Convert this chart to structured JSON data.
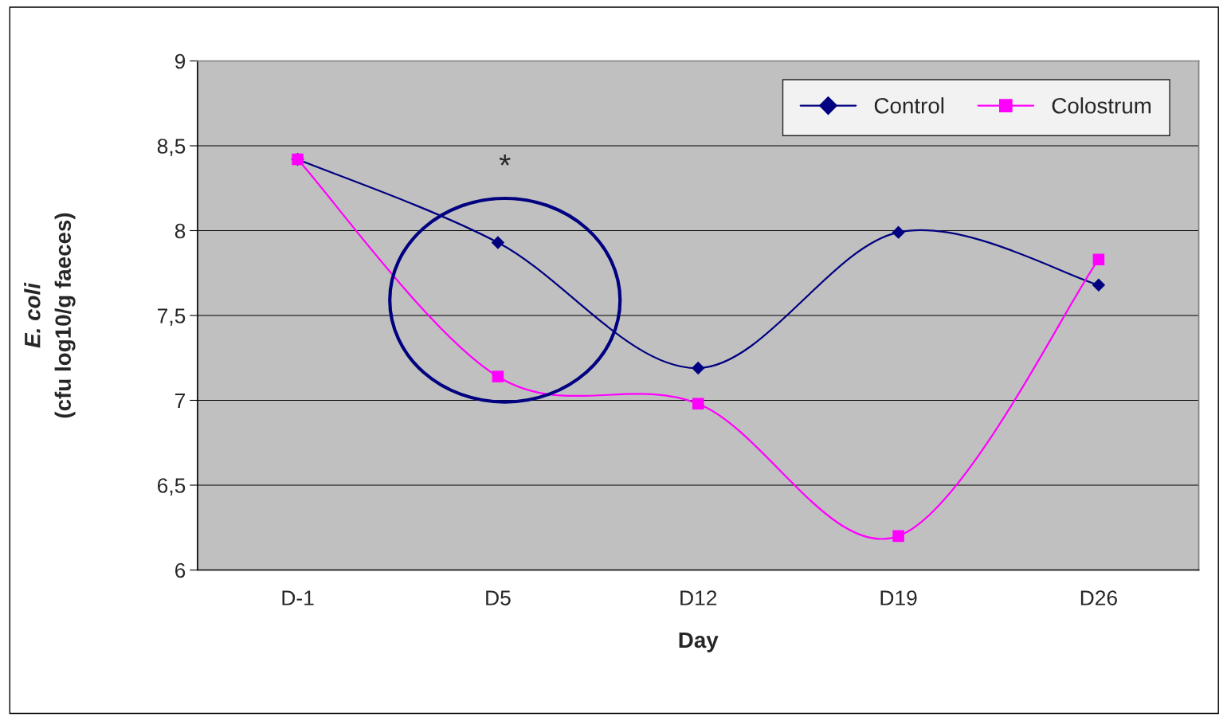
{
  "chart_data": {
    "type": "line",
    "xlabel": "Day",
    "ylabel": "E. coli\n(cfu log10/g faeces)",
    "categories": [
      "D-1",
      "D5",
      "D12",
      "D19",
      "D26"
    ],
    "series": [
      {
        "name": "Control",
        "color": "#000080",
        "marker": "diamond",
        "values": [
          8.42,
          7.93,
          7.19,
          7.99,
          7.68
        ]
      },
      {
        "name": "Colostrum",
        "color": "#ff00ff",
        "marker": "square",
        "values": [
          8.42,
          7.14,
          6.98,
          6.2,
          7.83
        ]
      }
    ],
    "ylim": [
      6,
      9
    ],
    "yticks": [
      6,
      {
        "value": 6.5,
        "label": "6,5"
      },
      7,
      {
        "value": 7.5,
        "label": "7,5"
      },
      8,
      {
        "value": 8.5,
        "label": "8,5"
      },
      9
    ],
    "annotations": [
      "*"
    ],
    "grid": "y",
    "legend": "top right",
    "line_style": "solid"
  }
}
